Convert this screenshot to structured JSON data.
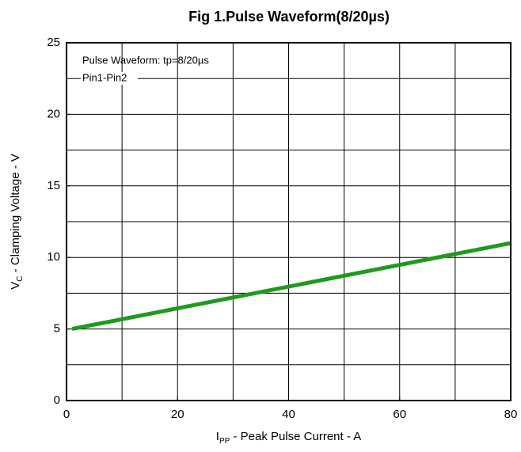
{
  "chart_data": {
    "type": "line",
    "title": "Fig 1.Pulse Waveform(8/20µs)",
    "x_label": {
      "main": "I",
      "sub": "PP",
      "rest": " - Peak Pulse Current - A"
    },
    "y_label": {
      "main": "V",
      "sub": "C",
      "rest": " - Clamping Voltage - V"
    },
    "annotations": [
      "Pulse Waveform: tp=8/20µs",
      "Pin1-Pin2"
    ],
    "x": [
      1,
      80
    ],
    "series": [
      {
        "name": "Pin1-Pin2",
        "color": "#1e9a1e",
        "values": [
          5,
          11
        ]
      }
    ],
    "xlim": [
      0,
      80
    ],
    "xticks": [
      0,
      20,
      40,
      60,
      80
    ],
    "ylim": [
      0,
      25
    ],
    "yticks": [
      0,
      5,
      10,
      15,
      20,
      25
    ],
    "xgrid": [
      10,
      20,
      30,
      40,
      50,
      60,
      70
    ],
    "ygrid": [
      2.5,
      5,
      7.5,
      10,
      12.5,
      15,
      17.5,
      20,
      22.5
    ],
    "grid": true
  }
}
